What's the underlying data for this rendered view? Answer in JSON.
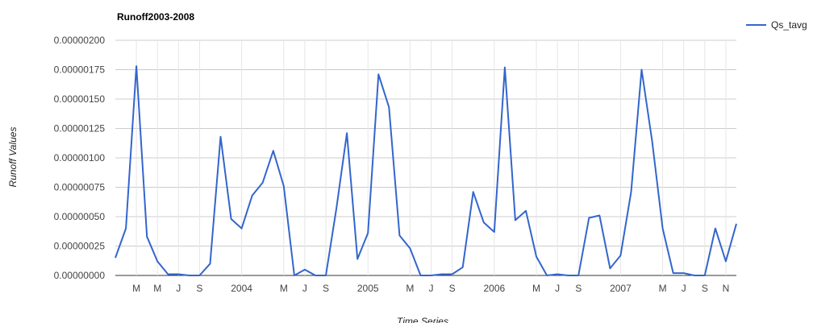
{
  "chart_data": {
    "type": "line",
    "title": "Runoff2003-2008",
    "xlabel": "Time Series",
    "ylabel": "Runoff Values",
    "ylim": [
      0,
      2e-06
    ],
    "y_ticks": [
      {
        "value": 0.0,
        "label": "0.00000000"
      },
      {
        "value": 2.5e-07,
        "label": "0.00000025"
      },
      {
        "value": 5e-07,
        "label": "0.00000050"
      },
      {
        "value": 7.5e-07,
        "label": "0.00000075"
      },
      {
        "value": 1e-06,
        "label": "0.00000100"
      },
      {
        "value": 1.25e-06,
        "label": "0.00000125"
      },
      {
        "value": 1.5e-06,
        "label": "0.00000150"
      },
      {
        "value": 1.75e-06,
        "label": "0.00000175"
      },
      {
        "value": 2e-06,
        "label": "0.00000200"
      }
    ],
    "x_ticks": [
      {
        "index": 2,
        "label": "M"
      },
      {
        "index": 4,
        "label": "M"
      },
      {
        "index": 6,
        "label": "J"
      },
      {
        "index": 8,
        "label": "S"
      },
      {
        "index": 12,
        "label": "2004"
      },
      {
        "index": 16,
        "label": "M"
      },
      {
        "index": 18,
        "label": "J"
      },
      {
        "index": 20,
        "label": "S"
      },
      {
        "index": 24,
        "label": "2005"
      },
      {
        "index": 28,
        "label": "M"
      },
      {
        "index": 30,
        "label": "J"
      },
      {
        "index": 32,
        "label": "S"
      },
      {
        "index": 36,
        "label": "2006"
      },
      {
        "index": 40,
        "label": "M"
      },
      {
        "index": 42,
        "label": "J"
      },
      {
        "index": 44,
        "label": "S"
      },
      {
        "index": 48,
        "label": "2007"
      },
      {
        "index": 52,
        "label": "M"
      },
      {
        "index": 54,
        "label": "J"
      },
      {
        "index": 56,
        "label": "S"
      },
      {
        "index": 58,
        "label": "N"
      }
    ],
    "grid": true,
    "legend_position": "top-right",
    "series": [
      {
        "name": "Qs_tavg",
        "color": "#3366cc",
        "values": [
          1.5e-07,
          4e-07,
          1.78e-06,
          3.3e-07,
          1.2e-07,
          1e-08,
          1e-08,
          0.0,
          0.0,
          1e-07,
          1.18e-06,
          4.8e-07,
          4e-07,
          6.8e-07,
          7.9e-07,
          1.06e-06,
          7.6e-07,
          0.0,
          5e-08,
          0.0,
          0.0,
          5.7e-07,
          1.21e-06,
          1.4e-07,
          3.6e-07,
          1.71e-06,
          1.43e-06,
          3.4e-07,
          2.3e-07,
          0.0,
          0.0,
          1e-08,
          1e-08,
          7e-08,
          7.1e-07,
          4.5e-07,
          3.7e-07,
          1.77e-06,
          4.7e-07,
          5.5e-07,
          1.6e-07,
          0.0,
          1e-08,
          0.0,
          0.0,
          4.9e-07,
          5.1e-07,
          6e-08,
          1.7e-07,
          7.1e-07,
          1.75e-06,
          1.14e-06,
          4e-07,
          2e-08,
          2e-08,
          0.0,
          0.0,
          4e-07,
          1.2e-07,
          4.4e-07
        ]
      }
    ]
  }
}
